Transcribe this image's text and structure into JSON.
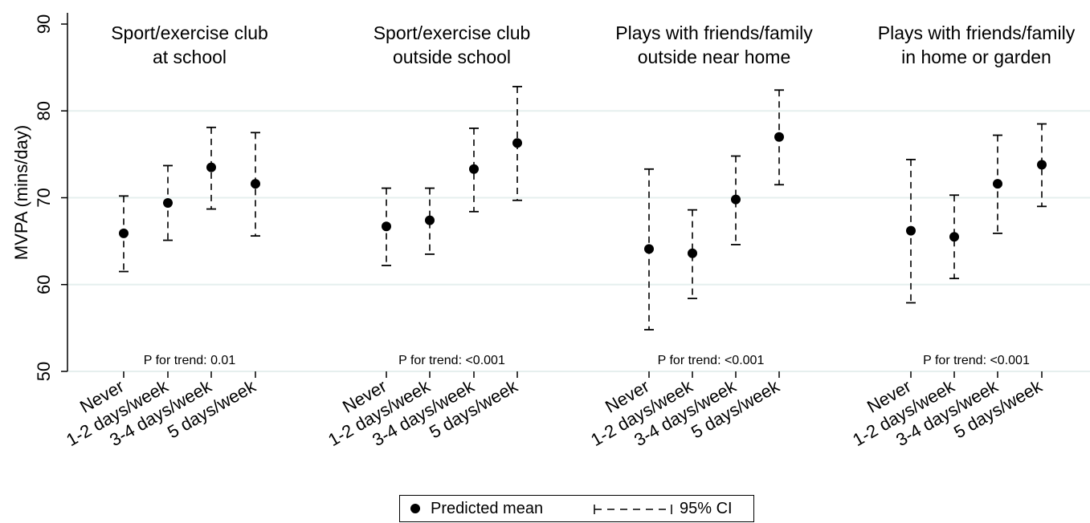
{
  "chart_data": {
    "type": "scatter",
    "ylabel": "MVPA (mins/day)",
    "ylim": [
      50,
      90
    ],
    "yticks": [
      50,
      60,
      70,
      80,
      90
    ],
    "grid": true,
    "legend": {
      "position": "bottom",
      "entries": [
        "Predicted mean",
        "95% CI"
      ]
    },
    "panels": [
      {
        "title_lines": [
          "Sport/exercise club",
          "at school"
        ],
        "categories": [
          "Never",
          "1-2 days/week",
          "3-4 days/week",
          "5 days/week"
        ],
        "mean": [
          65.9,
          69.4,
          73.5,
          71.6
        ],
        "ci_low": [
          61.5,
          65.1,
          68.7,
          65.6
        ],
        "ci_high": [
          70.2,
          73.7,
          78.1,
          77.5
        ],
        "annotation": "P for trend: 0.01"
      },
      {
        "title_lines": [
          "Sport/exercise club",
          "outside school"
        ],
        "categories": [
          "Never",
          "1-2 days/week",
          "3-4 days/week",
          "5 days/week"
        ],
        "mean": [
          66.7,
          67.4,
          73.3,
          76.3
        ],
        "ci_low": [
          62.2,
          63.5,
          68.4,
          69.7
        ],
        "ci_high": [
          71.1,
          71.1,
          78.0,
          82.8
        ],
        "annotation": "P for trend: <0.001"
      },
      {
        "title_lines": [
          "Plays with friends/family",
          "outside near home"
        ],
        "categories": [
          "Never",
          "1-2 days/week",
          "3-4 days/week",
          "5 days/week"
        ],
        "mean": [
          64.1,
          63.6,
          69.8,
          77.0
        ],
        "ci_low": [
          54.8,
          58.4,
          64.6,
          71.5
        ],
        "ci_high": [
          73.3,
          68.6,
          74.8,
          82.4
        ],
        "annotation": "P for trend: <0.001"
      },
      {
        "title_lines": [
          "Plays with friends/family",
          "in home or garden"
        ],
        "categories": [
          "Never",
          "1-2 days/week",
          "3-4 days/week",
          "5 days/week"
        ],
        "mean": [
          66.2,
          65.5,
          71.6,
          73.8
        ],
        "ci_low": [
          57.9,
          60.7,
          65.9,
          69.0
        ],
        "ci_high": [
          74.4,
          70.3,
          77.2,
          78.5
        ],
        "annotation": "P for trend: <0.001"
      }
    ]
  }
}
